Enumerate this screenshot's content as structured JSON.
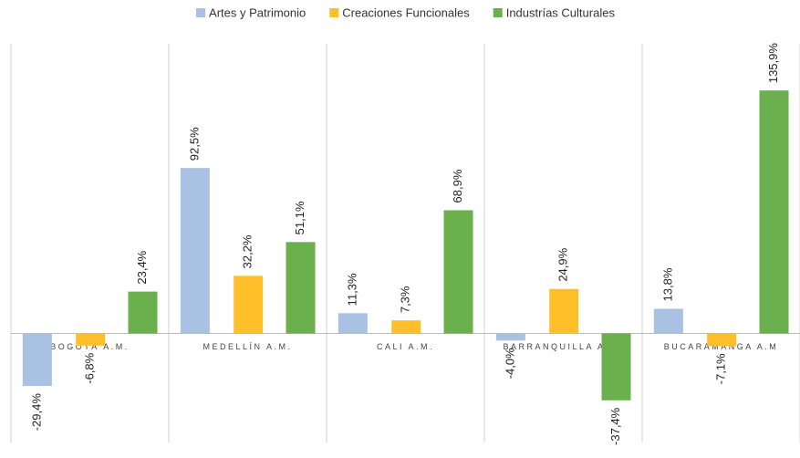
{
  "chart_data": {
    "type": "bar",
    "categories": [
      "BOGOTÁ A.M.",
      "MEDELLÍN A.M.",
      "CALI A.M.",
      "BARRANQUILLA A.M.",
      "BUCARAMANGA A.M"
    ],
    "series": [
      {
        "name": "Artes y Patrimonio",
        "color": "#a9c1e3",
        "values": [
          -29.4,
          92.5,
          11.3,
          -4.0,
          13.8
        ],
        "value_labels": [
          "-29,4%",
          "92,5%",
          "11,3%",
          "-4,0%",
          "13,8%"
        ]
      },
      {
        "name": "Creaciones Funcionales",
        "color": "#ffbf2a",
        "values": [
          -6.8,
          32.2,
          7.3,
          24.9,
          -7.1
        ],
        "value_labels": [
          "-6,8%",
          "32,2%",
          "7,3%",
          "24,9%",
          "-7,1%"
        ]
      },
      {
        "name": "Industrías Culturales",
        "color": "#6ab04c",
        "values": [
          23.4,
          51.1,
          68.9,
          -37.4,
          135.9
        ],
        "value_labels": [
          "23,4%",
          "51,1%",
          "68,9%",
          "-37,4%",
          "135,9%"
        ]
      }
    ],
    "ylim": [
      -61,
      162
    ],
    "legend": "top"
  }
}
